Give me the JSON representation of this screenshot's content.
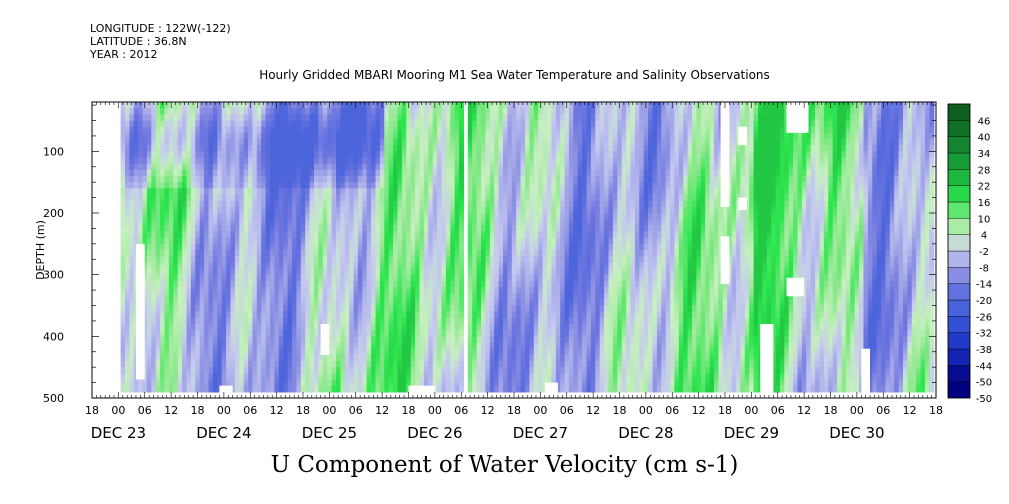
{
  "header": {
    "longitude": "LONGITUDE : 122W(-122)",
    "latitude": "LATITUDE : 36.8N",
    "year": "YEAR : 2012"
  },
  "title": "Hourly Gridded MBARI Mooring M1 Sea Water Temperature and Salinity Observations",
  "caption": "U Component of Water Velocity (cm s-1)",
  "colors": {
    "strong_negative": "#00007f",
    "negative": "#3a5bd9",
    "weak_negative": "#9fa3e6",
    "near_zero": "#c7f0c0",
    "positive": "#2ee650",
    "strong_positive": "#0f5a1e"
  },
  "chart_data": {
    "type": "heatmap",
    "title": "Hourly Gridded MBARI Mooring M1 Sea Water Temperature and Salinity Observations",
    "xlabel": "",
    "ylabel": "DEPTH (m)",
    "x_range": [
      "DEC 22 18:00",
      "DEC 30 18:00"
    ],
    "x_tick_labels": [
      "18",
      "00",
      "06",
      "12",
      "18",
      "00",
      "06",
      "12",
      "18",
      "00",
      "06",
      "12",
      "18",
      "00",
      "06",
      "12",
      "18",
      "00",
      "06",
      "12",
      "18",
      "00",
      "06",
      "12",
      "18",
      "00",
      "06",
      "12",
      "18",
      "00",
      "06",
      "12",
      "18"
    ],
    "x_date_labels": [
      "DEC 23",
      "DEC 24",
      "DEC 25",
      "DEC 26",
      "DEC 27",
      "DEC 28",
      "DEC 29",
      "DEC 30"
    ],
    "y_range": [
      500,
      20
    ],
    "y_ticks": [
      100,
      200,
      300,
      400,
      500
    ],
    "colorbar": {
      "label": "U Component of Water Velocity (cm s-1)",
      "levels": [
        -50,
        -44,
        -38,
        -32,
        -26,
        -20,
        -14,
        -8,
        -2,
        4,
        10,
        16,
        22,
        28,
        34,
        40,
        46
      ],
      "range": [
        -50,
        50
      ]
    },
    "data_start": "DEC 23 00:00",
    "data_gap": [
      "DEC 26 06:00",
      "DEC 26 07:00"
    ],
    "observed_value_range": [
      -20,
      20
    ]
  }
}
